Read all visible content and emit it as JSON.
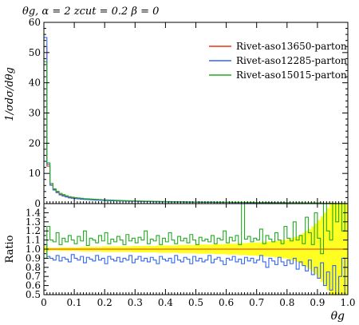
{
  "chart_data": {
    "type": "line",
    "title": "θg, α = 2 zcut = 0.2 β = 0",
    "xlabel": "θg",
    "ylabel": "1/σdσ/dθg",
    "ratio_ylabel": "Ratio",
    "xlim": [
      0,
      1
    ],
    "ylim": [
      0,
      60
    ],
    "ratio_ylim": [
      0.5,
      1.5
    ],
    "x_ticks": [
      "0",
      "0.1",
      "0.2",
      "0.3",
      "0.4",
      "0.5",
      "0.6",
      "0.7",
      "0.8",
      "0.9",
      "1.0"
    ],
    "y_ticks": [
      "0",
      "10",
      "20",
      "30",
      "40",
      "50",
      "60"
    ],
    "ratio_ticks": [
      "0.5",
      "0.6",
      "0.7",
      "0.8",
      "0.9",
      "1.0",
      "1.1",
      "1.2",
      "1.3",
      "1.4"
    ],
    "legend_position": "top-right",
    "bin_width": 0.01,
    "series": [
      {
        "name": "Rivet-aso13650-parton",
        "color": "#ee3311",
        "values": [
          52,
          12.4,
          6.2,
          4.6,
          3.8,
          3.1,
          2.7,
          2.4,
          2.1,
          1.95,
          1.8,
          1.7,
          1.6,
          1.5,
          1.45,
          1.4,
          1.33,
          1.28,
          1.22,
          1.17,
          1.13,
          1.09,
          1.05,
          1.01,
          0.98,
          0.95,
          0.92,
          0.89,
          0.86,
          0.84,
          0.81,
          0.79,
          0.77,
          0.75,
          0.73,
          0.71,
          0.69,
          0.67,
          0.66,
          0.64,
          0.62,
          0.61,
          0.6,
          0.58,
          0.57,
          0.56,
          0.55,
          0.53,
          0.52,
          0.51,
          0.5,
          0.49,
          0.48,
          0.47,
          0.46,
          0.45,
          0.44,
          0.43,
          0.42,
          0.41,
          0.41,
          0.4,
          0.39,
          0.38,
          0.38,
          0.37,
          0.36,
          0.35,
          0.35,
          0.34,
          0.33,
          0.33,
          0.32,
          0.31,
          0.31,
          0.3,
          0.29,
          0.29,
          0.28,
          0.28,
          0.27,
          0.26,
          0.26,
          0.25,
          0.25,
          0.24,
          0.23,
          0.23,
          0.22,
          0.2,
          0.18,
          0.15,
          0.12,
          0.09,
          0.07,
          0.05,
          0.03,
          0.02,
          0.01,
          0.005
        ]
      },
      {
        "name": "Rivet-aso12285-parton",
        "color": "#3366ee",
        "values": [
          55,
          13,
          6.1,
          4.5,
          3.6,
          2.9,
          2.5,
          2.2,
          1.9,
          1.75,
          1.65,
          1.55,
          1.45,
          1.38,
          1.32,
          1.27,
          1.2,
          1.15,
          1.1,
          1.06,
          1.02,
          0.98,
          0.95,
          0.91,
          0.88,
          0.86,
          0.83,
          0.8,
          0.78,
          0.76,
          0.73,
          0.71,
          0.7,
          0.68,
          0.66,
          0.64,
          0.62,
          0.6,
          0.59,
          0.58,
          0.56,
          0.55,
          0.54,
          0.52,
          0.51,
          0.5,
          0.49,
          0.48,
          0.47,
          0.46,
          0.45,
          0.44,
          0.43,
          0.42,
          0.41,
          0.4,
          0.39,
          0.39,
          0.38,
          0.37,
          0.37,
          0.36,
          0.35,
          0.34,
          0.34,
          0.33,
          0.32,
          0.32,
          0.31,
          0.3,
          0.3,
          0.29,
          0.28,
          0.28,
          0.27,
          0.27,
          0.26,
          0.26,
          0.25,
          0.25,
          0.24,
          0.23,
          0.23,
          0.22,
          0.22,
          0.21,
          0.21,
          0.2,
          0.19,
          0.18,
          0.16,
          0.13,
          0.1,
          0.08,
          0.06,
          0.04,
          0.03,
          0.02,
          0.01,
          0.004
        ]
      },
      {
        "name": "Rivet-aso15015-parton",
        "color": "#22aa22",
        "values": [
          47,
          13.5,
          6.7,
          4.9,
          4.1,
          3.4,
          3.0,
          2.6,
          2.3,
          2.15,
          1.98,
          1.88,
          1.76,
          1.65,
          1.6,
          1.54,
          1.46,
          1.41,
          1.34,
          1.29,
          1.24,
          1.2,
          1.16,
          1.11,
          1.08,
          1.05,
          1.01,
          0.98,
          0.95,
          0.92,
          0.89,
          0.87,
          0.85,
          0.82,
          0.8,
          0.78,
          0.76,
          0.74,
          0.73,
          0.7,
          0.68,
          0.67,
          0.66,
          0.64,
          0.63,
          0.62,
          0.6,
          0.58,
          0.57,
          0.56,
          0.55,
          0.54,
          0.53,
          0.52,
          0.51,
          0.5,
          0.48,
          0.47,
          0.46,
          0.45,
          0.45,
          0.44,
          0.43,
          0.42,
          0.42,
          0.41,
          0.4,
          0.38,
          0.38,
          0.37,
          0.36,
          0.36,
          0.35,
          0.34,
          0.34,
          0.33,
          0.32,
          0.32,
          0.31,
          0.31,
          0.3,
          0.29,
          0.29,
          0.27,
          0.27,
          0.26,
          0.25,
          0.25,
          0.24,
          0.22,
          0.2,
          0.17,
          0.13,
          0.1,
          0.08,
          0.06,
          0.03,
          0.02,
          0.01,
          0.005
        ]
      }
    ],
    "ratio_series": [
      {
        "name": "Rivet-aso12285-parton",
        "color": "#3366ee",
        "values": [
          1.05,
          0.92,
          0.9,
          0.88,
          0.93,
          0.87,
          0.91,
          0.89,
          0.86,
          0.94,
          0.9,
          0.88,
          0.92,
          0.85,
          0.91,
          0.89,
          0.87,
          0.93,
          0.88,
          0.9,
          0.84,
          0.92,
          0.89,
          0.87,
          0.91,
          0.86,
          0.9,
          0.88,
          0.93,
          0.85,
          0.89,
          0.92,
          0.87,
          0.9,
          0.86,
          0.91,
          0.88,
          0.84,
          0.92,
          0.89,
          0.87,
          0.9,
          0.85,
          0.93,
          0.88,
          0.86,
          0.91,
          0.89,
          0.84,
          0.92,
          0.87,
          0.9,
          0.86,
          0.88,
          0.93,
          0.85,
          0.89,
          0.91,
          0.87,
          0.83,
          0.9,
          0.88,
          0.92,
          0.86,
          0.89,
          0.84,
          0.91,
          0.87,
          0.9,
          0.85,
          0.88,
          0.93,
          0.86,
          0.8,
          0.9,
          0.87,
          0.83,
          0.91,
          0.86,
          0.82,
          0.88,
          0.84,
          0.9,
          0.78,
          0.86,
          0.82,
          0.76,
          0.88,
          0.72,
          0.8,
          0.68,
          0.85,
          0.6,
          0.75,
          0.55,
          0.82,
          0.5,
          0.7,
          0.9,
          0.5
        ]
      },
      {
        "name": "Rivet-aso15015-parton",
        "color": "#22aa22",
        "values": [
          0.9,
          1.25,
          1.1,
          1.08,
          1.18,
          1.05,
          1.12,
          1.08,
          1.15,
          1.1,
          1.06,
          1.14,
          1.09,
          1.2,
          1.04,
          1.12,
          1.1,
          1.07,
          1.15,
          1.09,
          1.18,
          1.06,
          1.11,
          1.08,
          1.14,
          1.1,
          1.05,
          1.16,
          1.09,
          1.12,
          1.07,
          1.13,
          1.1,
          1.2,
          1.06,
          1.11,
          1.09,
          1.15,
          1.05,
          1.12,
          1.08,
          1.18,
          1.1,
          1.06,
          1.14,
          1.09,
          1.12,
          1.07,
          1.16,
          1.1,
          1.05,
          1.13,
          1.09,
          1.11,
          1.08,
          1.15,
          1.06,
          1.12,
          1.1,
          1.2,
          1.07,
          1.13,
          1.09,
          1.15,
          1.05,
          1.5,
          1.11,
          1.14,
          1.08,
          1.12,
          1.1,
          1.22,
          1.06,
          1.15,
          1.11,
          1.08,
          1.18,
          1.1,
          1.06,
          1.25,
          1.12,
          1.09,
          1.3,
          1.1,
          1.15,
          1.06,
          1.35,
          1.18,
          1.05,
          1.4,
          1.12,
          0.95,
          1.5,
          1.2,
          1.1,
          1.5,
          1.3,
          1.5,
          1.2,
          1.5
        ]
      }
    ],
    "reference_band": {
      "color": "#ffff22",
      "description_values_halfwidth": [
        0.03,
        0.02,
        0.015,
        0.015,
        0.015,
        0.02,
        0.02,
        0.02,
        0.02,
        0.02,
        0.02,
        0.02,
        0.025,
        0.025,
        0.025,
        0.025,
        0.025,
        0.025,
        0.025,
        0.03,
        0.03,
        0.03,
        0.03,
        0.03,
        0.03,
        0.03,
        0.03,
        0.03,
        0.03,
        0.035,
        0.035,
        0.035,
        0.035,
        0.035,
        0.035,
        0.035,
        0.035,
        0.04,
        0.04,
        0.04,
        0.04,
        0.04,
        0.04,
        0.04,
        0.045,
        0.045,
        0.045,
        0.045,
        0.045,
        0.045,
        0.05,
        0.05,
        0.05,
        0.05,
        0.05,
        0.05,
        0.055,
        0.055,
        0.055,
        0.055,
        0.06,
        0.06,
        0.06,
        0.06,
        0.065,
        0.065,
        0.065,
        0.07,
        0.07,
        0.07,
        0.075,
        0.075,
        0.08,
        0.08,
        0.085,
        0.085,
        0.09,
        0.09,
        0.1,
        0.1,
        0.11,
        0.12,
        0.13,
        0.14,
        0.16,
        0.18,
        0.2,
        0.22,
        0.25,
        0.28,
        0.32,
        0.36,
        0.4,
        0.45,
        0.5,
        0.5,
        0.5,
        0.5,
        0.5,
        0.5
      ]
    }
  }
}
